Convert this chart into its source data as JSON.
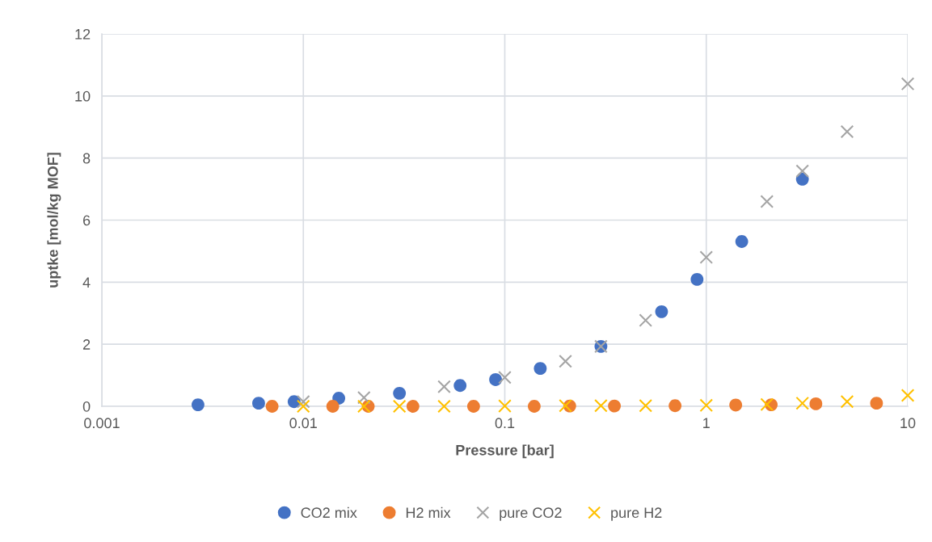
{
  "chart_data": {
    "type": "scatter",
    "xlabel": "Pressure [bar]",
    "ylabel": "uptke [mol/kg MOF]",
    "log": "x",
    "xlim": [
      0.001,
      10
    ],
    "xticks": [
      0.001,
      0.01,
      0.1,
      1,
      10
    ],
    "ylim": [
      0,
      12
    ],
    "yticks": [
      0,
      2,
      4,
      6,
      8,
      10,
      12
    ],
    "grid": true,
    "legend": "bottom",
    "series": [
      {
        "name": "CO2 mix",
        "color": "#4472c4",
        "marker": "circle",
        "x": [
          0.003,
          0.006,
          0.009,
          0.015,
          0.03,
          0.06,
          0.09,
          0.15,
          0.3,
          0.6,
          0.9,
          1.5,
          3
        ],
        "values": [
          0.05,
          0.1,
          0.15,
          0.26,
          0.42,
          0.67,
          0.86,
          1.22,
          1.93,
          3.05,
          4.09,
          5.31,
          7.32
        ]
      },
      {
        "name": "H2 mix",
        "color": "#ed7d31",
        "marker": "circle",
        "x": [
          0.007,
          0.014,
          0.021,
          0.035,
          0.07,
          0.14,
          0.21,
          0.35,
          0.7,
          1.4,
          2.1,
          3.5,
          7
        ],
        "values": [
          0.0,
          0.0,
          0.0,
          0.0,
          0.0,
          0.0,
          0.01,
          0.01,
          0.02,
          0.04,
          0.05,
          0.08,
          0.1
        ]
      },
      {
        "name": "pure CO2",
        "color": "#a5a5a5",
        "marker": "cross",
        "x": [
          0.01,
          0.02,
          0.05,
          0.1,
          0.2,
          0.3,
          0.5,
          1,
          2,
          3,
          5,
          10
        ],
        "values": [
          0.15,
          0.28,
          0.63,
          0.93,
          1.45,
          1.93,
          2.77,
          4.8,
          6.6,
          7.58,
          8.85,
          10.39
        ]
      },
      {
        "name": "pure H2",
        "color": "#ffc000",
        "marker": "cross",
        "x": [
          0.01,
          0.02,
          0.03,
          0.05,
          0.1,
          0.2,
          0.3,
          0.5,
          1,
          2,
          3,
          5,
          10
        ],
        "values": [
          0.0,
          0.0,
          0.0,
          0.0,
          0.01,
          0.02,
          0.02,
          0.02,
          0.03,
          0.06,
          0.1,
          0.15,
          0.35
        ]
      }
    ]
  }
}
